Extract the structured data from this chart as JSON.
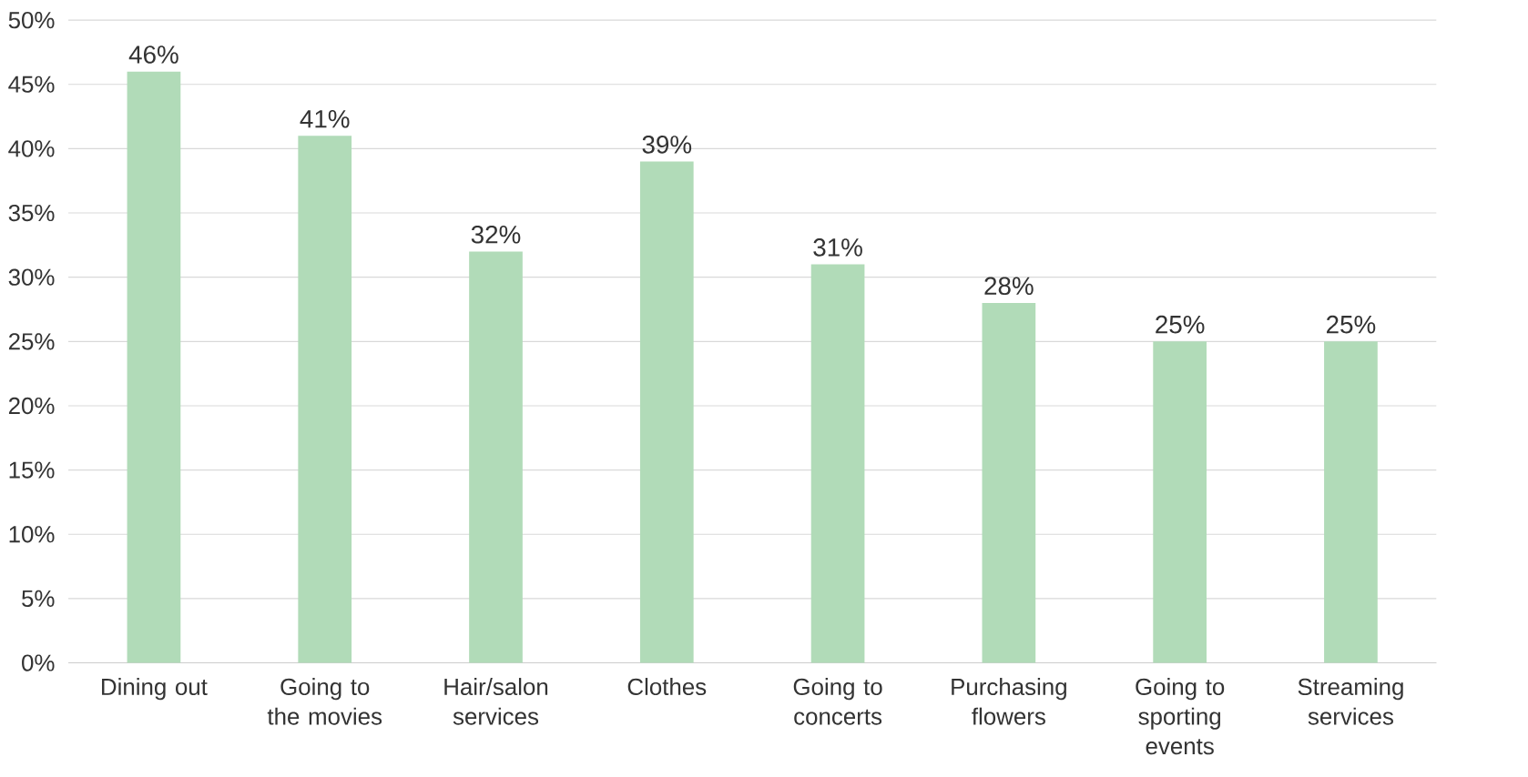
{
  "chart_data": {
    "type": "bar",
    "categories": [
      "Dining out",
      "Going to the movies",
      "Hair/salon services",
      "Clothes",
      "Going to concerts",
      "Purchasing flowers",
      "Going to sporting events",
      "Streaming services"
    ],
    "values": [
      46,
      41,
      32,
      39,
      31,
      28,
      25,
      25
    ],
    "value_labels": [
      "46%",
      "41%",
      "32%",
      "39%",
      "31%",
      "28%",
      "25%",
      "25%"
    ],
    "color": "#b1dbb8",
    "ylim": [
      0,
      50
    ],
    "yticks": [
      {
        "value": 0,
        "label": "0%"
      },
      {
        "value": 5,
        "label": "5%"
      },
      {
        "value": 10,
        "label": "10%"
      },
      {
        "value": 15,
        "label": "15%"
      },
      {
        "value": 20,
        "label": "20%"
      },
      {
        "value": 25,
        "label": "25%"
      },
      {
        "value": 30,
        "label": "30%"
      },
      {
        "value": 35,
        "label": "35%"
      },
      {
        "value": 40,
        "label": "40%"
      },
      {
        "value": 45,
        "label": "45%"
      },
      {
        "value": 50,
        "label": "50%"
      }
    ],
    "grid": "y"
  }
}
